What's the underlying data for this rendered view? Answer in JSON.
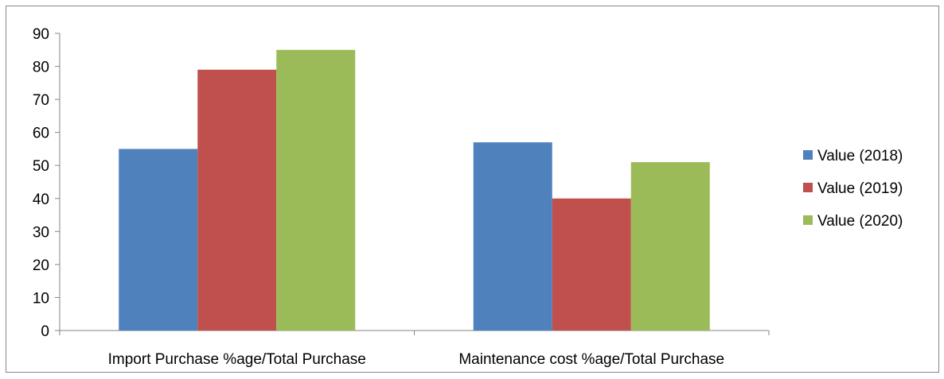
{
  "chart_data": {
    "type": "bar",
    "categories": [
      "Import Purchase %age/Total Purchase",
      "Maintenance cost %age/Total Purchase"
    ],
    "series": [
      {
        "name": "Value (2018)",
        "values": [
          55,
          57
        ],
        "color": "#4F81BD"
      },
      {
        "name": "Value (2019)",
        "values": [
          79,
          40
        ],
        "color": "#C0504D"
      },
      {
        "name": "Value (2020)",
        "values": [
          85,
          51
        ],
        "color": "#9BBB59"
      }
    ],
    "title": "",
    "xlabel": "",
    "ylabel": "",
    "ylim": [
      0,
      90
    ],
    "yticks": [
      0,
      10,
      20,
      30,
      40,
      50,
      60,
      70,
      80,
      90
    ],
    "grid": false,
    "legend_position": "right"
  }
}
